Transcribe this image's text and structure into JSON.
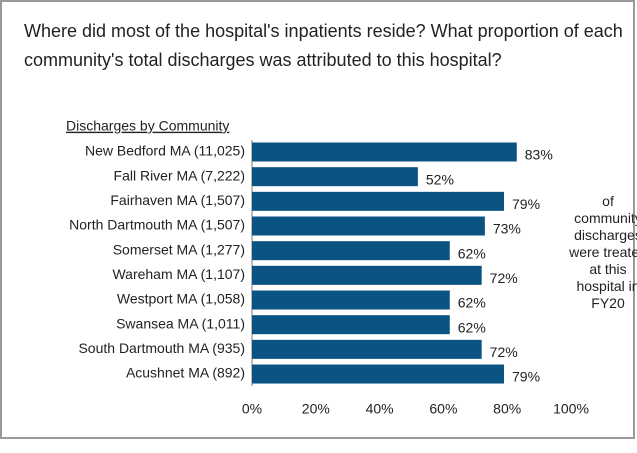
{
  "chart_data": {
    "type": "bar",
    "orientation": "horizontal",
    "title": "Where did most of the hospital's inpatients reside? What proportion of each community's total discharges was attributed to this hospital?",
    "ylabel": "Discharges by Community",
    "categories": [
      "New Bedford MA (11,025)",
      "Fall River MA (7,222)",
      "Fairhaven MA (1,507)",
      "North Dartmouth MA (1,507)",
      "Somerset MA (1,277)",
      "Wareham MA (1,107)",
      "Westport MA (1,058)",
      "Swansea MA (1,011)",
      "South Dartmouth MA (935)",
      "Acushnet MA (892)"
    ],
    "values": [
      83,
      52,
      79,
      73,
      62,
      72,
      62,
      62,
      72,
      79
    ],
    "value_labels": [
      "83%",
      "52%",
      "79%",
      "73%",
      "62%",
      "72%",
      "62%",
      "62%",
      "72%",
      "79%"
    ],
    "color": "#0b5382",
    "xlim": [
      0,
      100
    ],
    "xticks": [
      {
        "value": 0,
        "label": "0%"
      },
      {
        "value": 20,
        "label": "20%"
      },
      {
        "value": 40,
        "label": "40%"
      },
      {
        "value": 60,
        "label": "60%"
      },
      {
        "value": 80,
        "label": "80%"
      },
      {
        "value": 100,
        "label": "100%"
      }
    ],
    "annotation": "of community discharges were treated at this hospital in FY20"
  }
}
